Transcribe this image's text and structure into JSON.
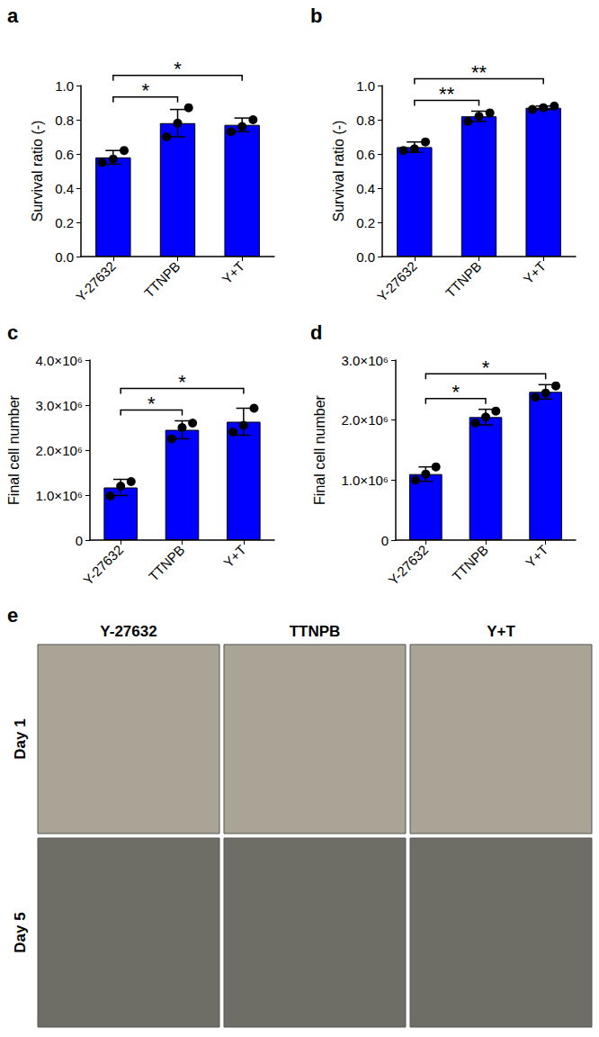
{
  "chart_data": [
    {
      "type": "bar",
      "panel": "a",
      "y_label": "Survival ratio (-)",
      "categories": [
        "Y-27632",
        "TTNPB",
        "Y+T"
      ],
      "values": [
        0.58,
        0.78,
        0.77
      ],
      "errors": [
        0.04,
        0.08,
        0.04
      ],
      "points": [
        [
          0.55,
          0.57,
          0.62
        ],
        [
          0.7,
          0.78,
          0.87
        ],
        [
          0.73,
          0.76,
          0.8
        ]
      ],
      "color": "#0000ff",
      "grid": false,
      "ylim": [
        0,
        1.0
      ],
      "yticks": [
        {
          "value": 0,
          "label": "0.0"
        },
        {
          "value": 0.2,
          "label": "0.2"
        },
        {
          "value": 0.4,
          "label": "0.4"
        },
        {
          "value": 0.6,
          "label": "0.6"
        },
        {
          "value": 0.8,
          "label": "0.8"
        },
        {
          "value": 1.0,
          "label": "1.0"
        }
      ],
      "comparisons": [
        {
          "from": 0,
          "to": 1,
          "label": "*"
        },
        {
          "from": 0,
          "to": 2,
          "label": "*"
        }
      ]
    },
    {
      "type": "bar",
      "panel": "b",
      "y_label": "Survival ratio (-)",
      "categories": [
        "Y-27632",
        "TTNPB",
        "Y+T"
      ],
      "values": [
        0.64,
        0.82,
        0.87
      ],
      "errors": [
        0.03,
        0.03,
        0.01
      ],
      "points": [
        [
          0.62,
          0.63,
          0.67
        ],
        [
          0.79,
          0.82,
          0.84
        ],
        [
          0.86,
          0.87,
          0.88
        ]
      ],
      "color": "#0000ff",
      "grid": false,
      "ylim": [
        0,
        1.0
      ],
      "yticks": [
        {
          "value": 0,
          "label": "0.0"
        },
        {
          "value": 0.2,
          "label": "0.2"
        },
        {
          "value": 0.4,
          "label": "0.4"
        },
        {
          "value": 0.6,
          "label": "0.6"
        },
        {
          "value": 0.8,
          "label": "0.8"
        },
        {
          "value": 1.0,
          "label": "1.0"
        }
      ],
      "comparisons": [
        {
          "from": 0,
          "to": 1,
          "label": "**"
        },
        {
          "from": 0,
          "to": 2,
          "label": "**"
        }
      ]
    },
    {
      "type": "bar",
      "panel": "c",
      "y_label": "Final cell number",
      "categories": [
        "Y-27632",
        "TTNPB",
        "Y+T"
      ],
      "values": [
        1170000,
        2450000,
        2630000
      ],
      "errors": [
        180000,
        200000,
        300000
      ],
      "points": [
        [
          980000,
          1200000,
          1300000
        ],
        [
          2250000,
          2500000,
          2600000
        ],
        [
          2400000,
          2550000,
          2930000
        ]
      ],
      "color": "#0000ff",
      "grid": false,
      "ylim": [
        0,
        4000000
      ],
      "yticks": [
        0,
        {
          "value": 1000000,
          "label": "1.0×10⁶"
        },
        {
          "value": 2000000,
          "label": "2.0×10⁶"
        },
        {
          "value": 3000000,
          "label": "3.0×10⁶"
        },
        {
          "value": 4000000,
          "label": "4.0×10⁶"
        }
      ],
      "comparisons": [
        {
          "from": 0,
          "to": 1,
          "label": "*"
        },
        {
          "from": 0,
          "to": 2,
          "label": "*"
        }
      ]
    },
    {
      "type": "bar",
      "panel": "d",
      "y_label": "Final cell number",
      "categories": [
        "Y-27632",
        "TTNPB",
        "Y+T"
      ],
      "values": [
        1100000,
        2050000,
        2470000
      ],
      "errors": [
        120000,
        130000,
        120000
      ],
      "points": [
        [
          1000000,
          1100000,
          1220000
        ],
        [
          1950000,
          2050000,
          2150000
        ],
        [
          2380000,
          2450000,
          2570000
        ]
      ],
      "color": "#0000ff",
      "grid": false,
      "ylim": [
        0,
        3000000
      ],
      "yticks": [
        0,
        {
          "value": 1000000,
          "label": "1.0×10⁶"
        },
        {
          "value": 2000000,
          "label": "2.0×10⁶"
        },
        {
          "value": 3000000,
          "label": "3.0×10⁶"
        }
      ],
      "comparisons": [
        {
          "from": 0,
          "to": 1,
          "label": "*"
        },
        {
          "from": 0,
          "to": 2,
          "label": "*"
        }
      ]
    }
  ],
  "image_panel": {
    "panel": "e",
    "columns": [
      "Y-27632",
      "TTNPB",
      "Y+T"
    ],
    "rows": [
      "Day 1",
      "Day 5"
    ]
  }
}
